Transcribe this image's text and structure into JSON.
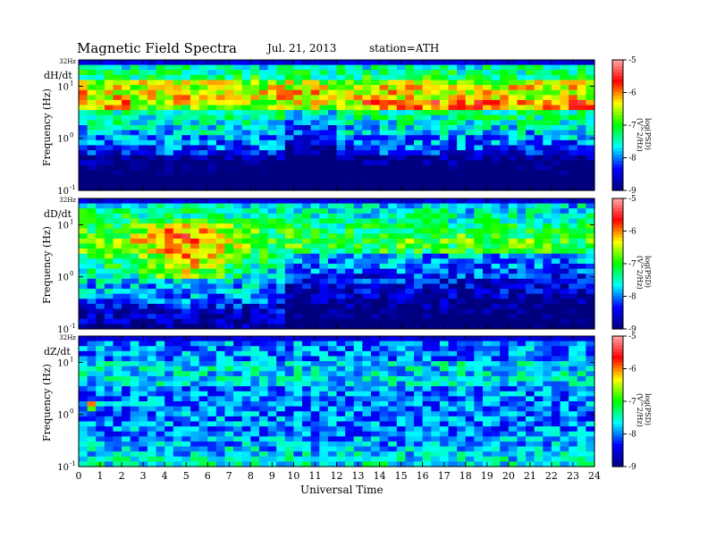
{
  "header": {
    "title": "Magnetic Field Spectra",
    "date": "Jul. 21, 2013",
    "station": "station=ATH"
  },
  "chart_data": {
    "type": "heatmap",
    "xlabel": "Universal Time",
    "x_ticks": [
      "0",
      "1",
      "2",
      "3",
      "4",
      "5",
      "6",
      "7",
      "8",
      "9",
      "10",
      "11",
      "12",
      "13",
      "14",
      "15",
      "16",
      "17",
      "18",
      "19",
      "20",
      "21",
      "22",
      "23",
      "24"
    ],
    "xlim": [
      0,
      24
    ],
    "ylim_hz": [
      0.1,
      32
    ],
    "y_scale": "log",
    "y_top_label": "32Hz",
    "y_tick_labels": [
      {
        "base": "10",
        "exp": "1",
        "value": 10
      },
      {
        "base": "10",
        "exp": "0",
        "value": 1
      },
      {
        "base": "10",
        "exp": "-1",
        "value": 0.1
      }
    ],
    "colorbar": {
      "label": "log(PSD)(V^2/Hz)",
      "range": [
        -9,
        -5
      ],
      "ticks": [
        "-5",
        "-6",
        "-7",
        "-8",
        "-9"
      ],
      "colormap": [
        "#00007f",
        "#0000ff",
        "#00ffff",
        "#00ff00",
        "#ffff00",
        "#ff0000",
        "#ffaaaa"
      ]
    },
    "panels": [
      {
        "component": "dH/dt",
        "ylabel": "Frequency (Hz)"
      },
      {
        "component": "dD/dt",
        "ylabel": "Frequency (Hz)"
      },
      {
        "component": "dZ/dt",
        "ylabel": "Frequency (Hz)"
      }
    ]
  }
}
